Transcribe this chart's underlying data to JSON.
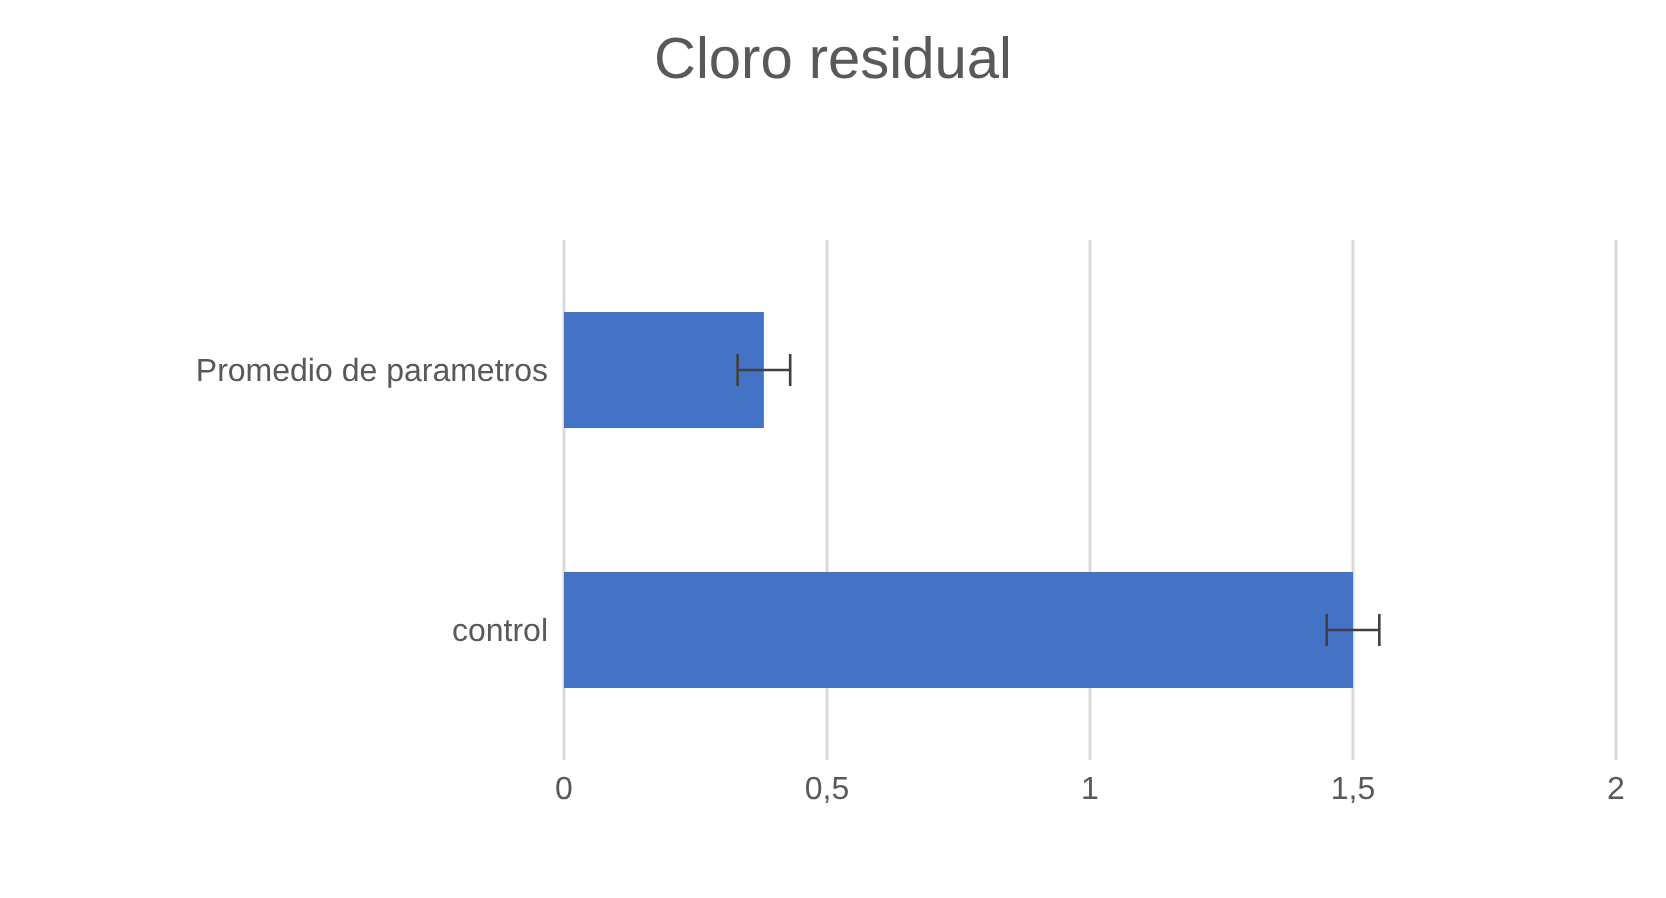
{
  "chart_data": {
    "type": "bar",
    "orientation": "horizontal",
    "title": "Cloro residual",
    "categories": [
      "Promedio de parametros",
      "control"
    ],
    "values": [
      0.38,
      1.5
    ],
    "errors": [
      0.05,
      0.05
    ],
    "color": "#4472c4",
    "xlim": [
      0,
      2
    ],
    "xticks": [
      0,
      {
        "value": 0.5,
        "label": "0,5"
      },
      1,
      {
        "value": 1.5,
        "label": "1,5"
      },
      2
    ],
    "grid": "x",
    "legend": false
  }
}
